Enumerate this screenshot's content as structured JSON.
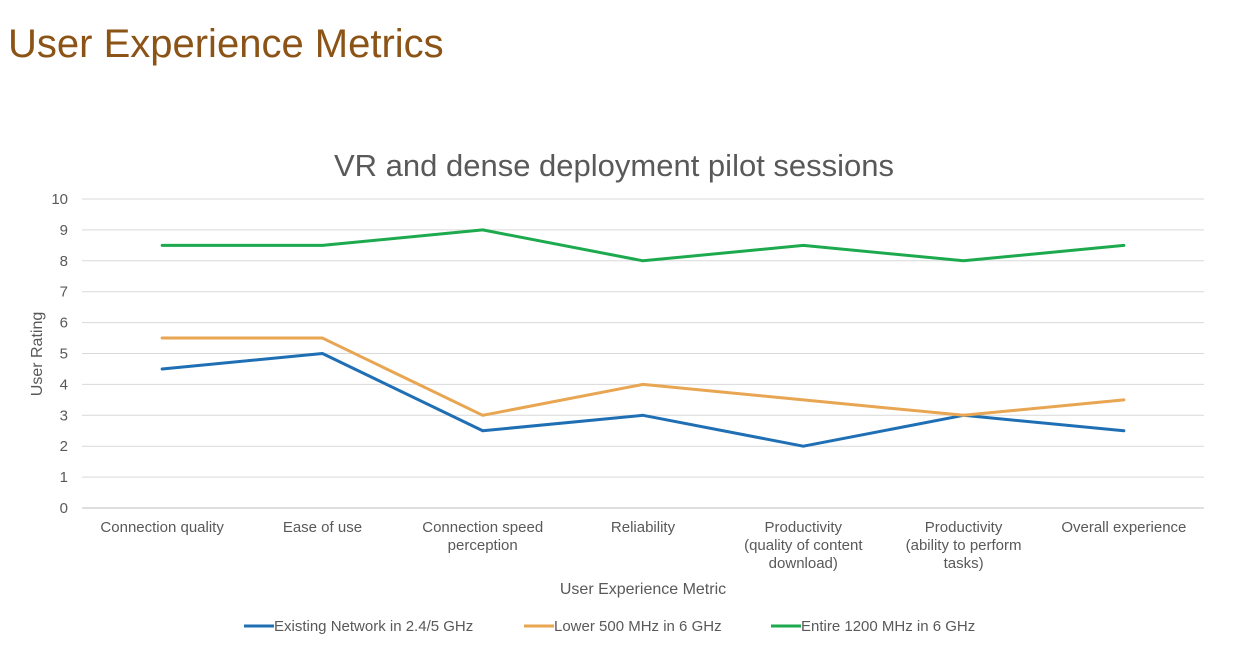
{
  "slide": {
    "title": "User Experience Metrics"
  },
  "chart_data": {
    "type": "line",
    "title": "VR and dense deployment pilot sessions",
    "xlabel": "User Experience Metric",
    "ylabel": "User Rating",
    "ylim": [
      0,
      10
    ],
    "yticks": [
      0,
      1,
      2,
      3,
      4,
      5,
      6,
      7,
      8,
      9,
      10
    ],
    "grid": true,
    "legend_position": "bottom",
    "categories": [
      [
        "Connection quality"
      ],
      [
        "Ease of use"
      ],
      [
        "Connection speed",
        "perception"
      ],
      [
        "Reliability"
      ],
      [
        "Productivity",
        "(quality of content",
        "download)"
      ],
      [
        "Productivity",
        "(ability to perform",
        "tasks)"
      ],
      [
        "Overall experience"
      ]
    ],
    "series": [
      {
        "name": "Existing Network in 2.4/5 GHz",
        "color": "#1F6FB5",
        "values": [
          4.5,
          5,
          2.5,
          3,
          2,
          3,
          2.5
        ]
      },
      {
        "name": "Lower 500 MHz in 6 GHz",
        "color": "#E8A552",
        "values": [
          5.5,
          5.5,
          3,
          4,
          3.5,
          3,
          3.5
        ]
      },
      {
        "name": "Entire 1200 MHz in 6 GHz",
        "color": "#1DAA4E",
        "values": [
          8.5,
          8.5,
          9,
          8,
          8.5,
          8,
          8.5
        ]
      }
    ]
  }
}
